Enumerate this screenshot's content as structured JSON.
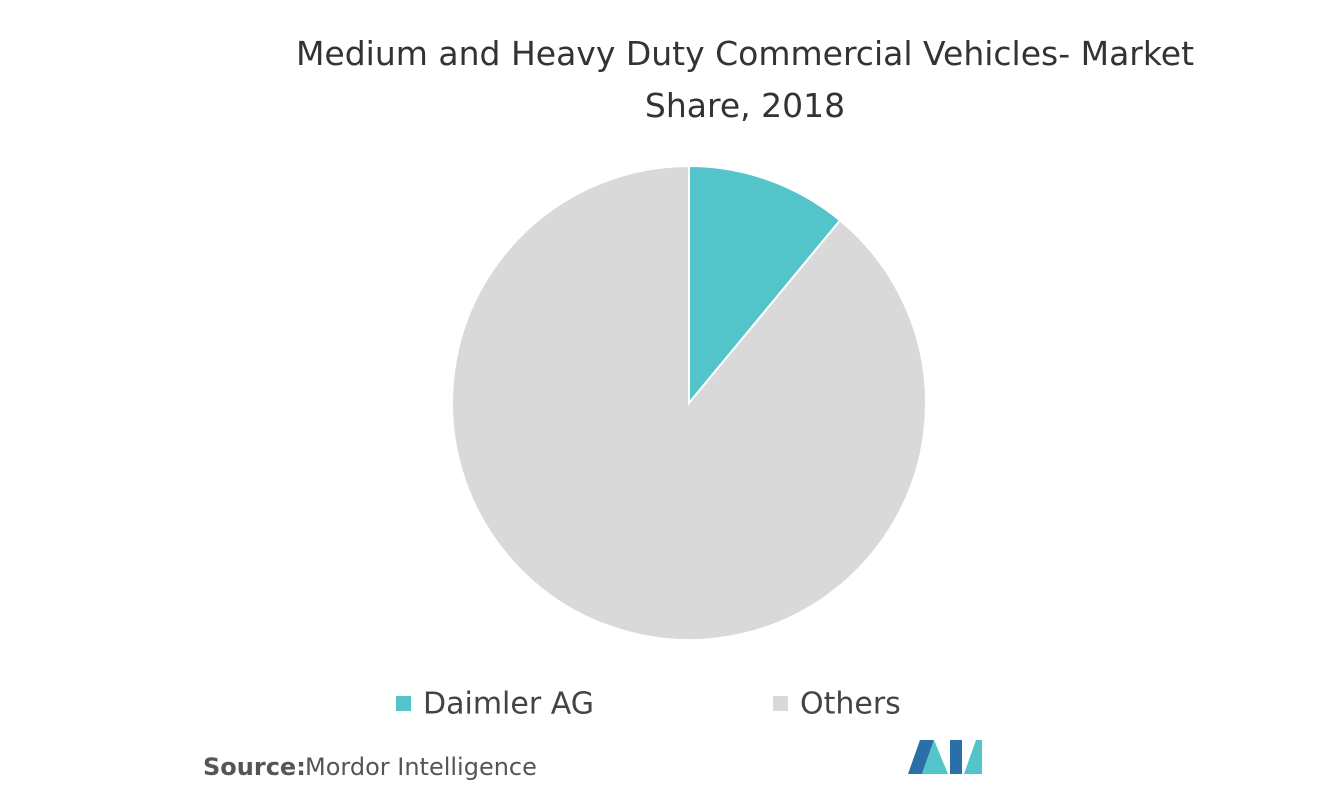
{
  "chart_data": {
    "type": "pie",
    "title": "Medium and Heavy Duty Commercial Vehicles- Market Share, 2018",
    "categories": [
      "Daimler AG",
      "Others"
    ],
    "values": [
      11,
      89
    ],
    "colors": [
      "#54c4cb",
      "#d9d9d9"
    ],
    "source_label": "Source:",
    "source": "Mordor Intelligence"
  }
}
